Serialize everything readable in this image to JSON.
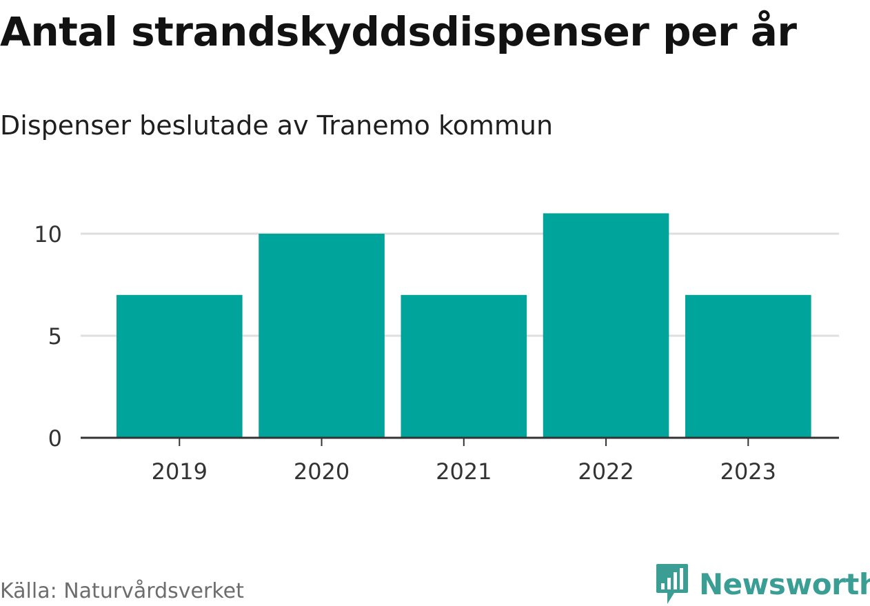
{
  "title": "Antal strandskyddsdispenser per år",
  "subtitle": "Dispenser beslutade av Tranemo kommun",
  "source": "Källa: Naturvårdsverket",
  "brand": {
    "name": "Newsworthy",
    "color": "#3a9e94"
  },
  "chart_data": {
    "type": "bar",
    "categories": [
      "2019",
      "2020",
      "2021",
      "2022",
      "2023"
    ],
    "values": [
      7,
      10,
      7,
      11,
      7
    ],
    "yticks": [
      "0",
      "5",
      "10"
    ],
    "ylim": [
      0,
      12
    ],
    "grid": true,
    "legend": "none",
    "bar_color": "#00a49a",
    "grid_color": "#dedede",
    "axis_color": "#333333",
    "xlabel": "",
    "ylabel": ""
  }
}
